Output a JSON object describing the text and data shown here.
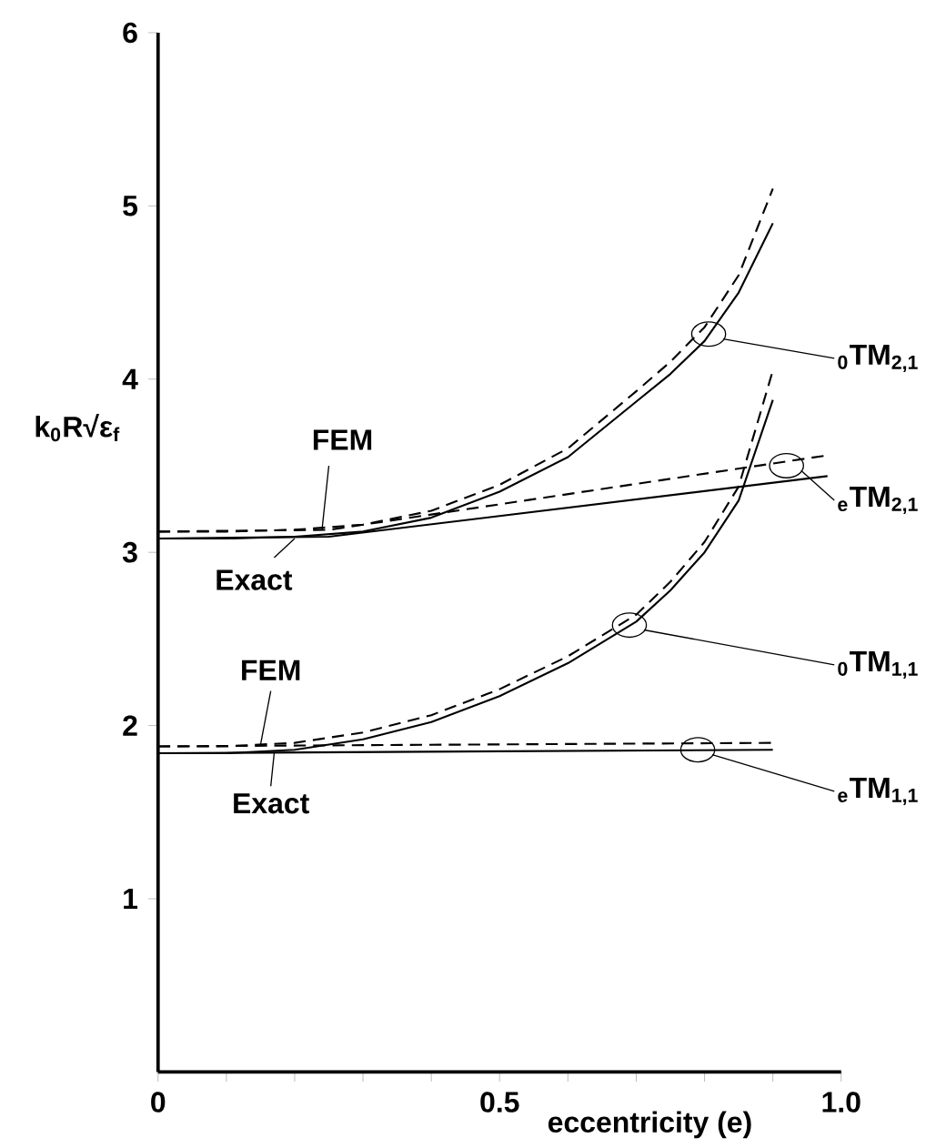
{
  "chart_data": {
    "type": "line",
    "xlabel": "eccentricity (e)",
    "ylabel": "k$_{0}$R√ε$_{f}$",
    "xlim": [
      0,
      1.0
    ],
    "ylim": [
      0,
      6
    ],
    "xticks": [
      0,
      {
        "value": 0.1,
        "label": null
      },
      {
        "value": 0.2,
        "label": null
      },
      {
        "value": 0.3,
        "label": null
      },
      {
        "value": 0.4,
        "label": null
      },
      0.5,
      {
        "value": 0.6,
        "label": null
      },
      {
        "value": 0.7,
        "label": null
      },
      {
        "value": 0.8,
        "label": null
      },
      {
        "value": 0.9,
        "label": null
      },
      {
        "value": 1.0,
        "label": "1.0"
      }
    ],
    "yticks": [
      1,
      2,
      3,
      4,
      5,
      6
    ],
    "grid": false,
    "marker": "none",
    "series": [
      {
        "color": "#000000",
        "line_style": "solid",
        "x": [
          0,
          0.1,
          0.2,
          0.3,
          0.4,
          0.5,
          0.6,
          0.7,
          0.75,
          0.8,
          0.85,
          0.9
        ],
        "values": [
          3.08,
          3.08,
          3.09,
          3.12,
          3.2,
          3.35,
          3.55,
          3.87,
          4.03,
          4.22,
          4.5,
          4.9
        ]
      },
      {
        "color": "#000000",
        "line_style": "dashed",
        "x": [
          0,
          0.1,
          0.2,
          0.3,
          0.4,
          0.5,
          0.6,
          0.7,
          0.75,
          0.8,
          0.85,
          0.9
        ],
        "values": [
          3.12,
          3.12,
          3.13,
          3.16,
          3.24,
          3.39,
          3.6,
          3.93,
          4.1,
          4.3,
          4.6,
          5.1
        ]
      },
      {
        "color": "#000000",
        "line_style": "solid",
        "x": [
          0,
          0.25,
          0.98
        ],
        "values": [
          3.08,
          3.09,
          3.44
        ]
      },
      {
        "color": "#000000",
        "line_style": "dashed",
        "x": [
          0,
          0.25,
          0.98
        ],
        "values": [
          3.12,
          3.13,
          3.56
        ]
      },
      {
        "color": "#000000",
        "line_style": "solid",
        "x": [
          0,
          0.1,
          0.2,
          0.3,
          0.4,
          0.5,
          0.6,
          0.7,
          0.75,
          0.8,
          0.85,
          0.9
        ],
        "values": [
          1.84,
          1.84,
          1.86,
          1.92,
          2.02,
          2.17,
          2.36,
          2.6,
          2.78,
          3.0,
          3.3,
          3.88
        ]
      },
      {
        "color": "#000000",
        "line_style": "dashed",
        "x": [
          0,
          0.1,
          0.2,
          0.3,
          0.4,
          0.5,
          0.6,
          0.7,
          0.75,
          0.8,
          0.85,
          0.9
        ],
        "values": [
          1.88,
          1.88,
          1.9,
          1.96,
          2.06,
          2.21,
          2.4,
          2.64,
          2.83,
          3.06,
          3.38,
          4.05
        ]
      },
      {
        "color": "#000000",
        "line_style": "solid",
        "x": [
          0,
          0.9
        ],
        "values": [
          1.84,
          1.86
        ]
      },
      {
        "color": "#000000",
        "line_style": "dashed",
        "x": [
          0,
          0.9
        ],
        "values": [
          1.88,
          1.9
        ]
      }
    ],
    "annotations": [
      {
        "text": "FEM",
        "x": 0.24,
        "y": 3.13
      },
      {
        "text": "Exact",
        "x": 0.2,
        "y": 3.08
      },
      {
        "text": "FEM",
        "x": 0.15,
        "y": 1.89
      },
      {
        "text": "Exact",
        "x": 0.17,
        "y": 1.84
      },
      {
        "text": "$_{0}$TM$_{2,1}$",
        "x": 0.806,
        "y": 4.26
      },
      {
        "text": "$_{e}$TM$_{2,1}$",
        "x": 0.92,
        "y": 3.5
      },
      {
        "text": "$_{0}$TM$_{1,1}$",
        "x": 0.69,
        "y": 2.58
      },
      {
        "text": "$_{e}$TM$_{1,1}$",
        "x": 0.79,
        "y": 1.86
      }
    ]
  }
}
